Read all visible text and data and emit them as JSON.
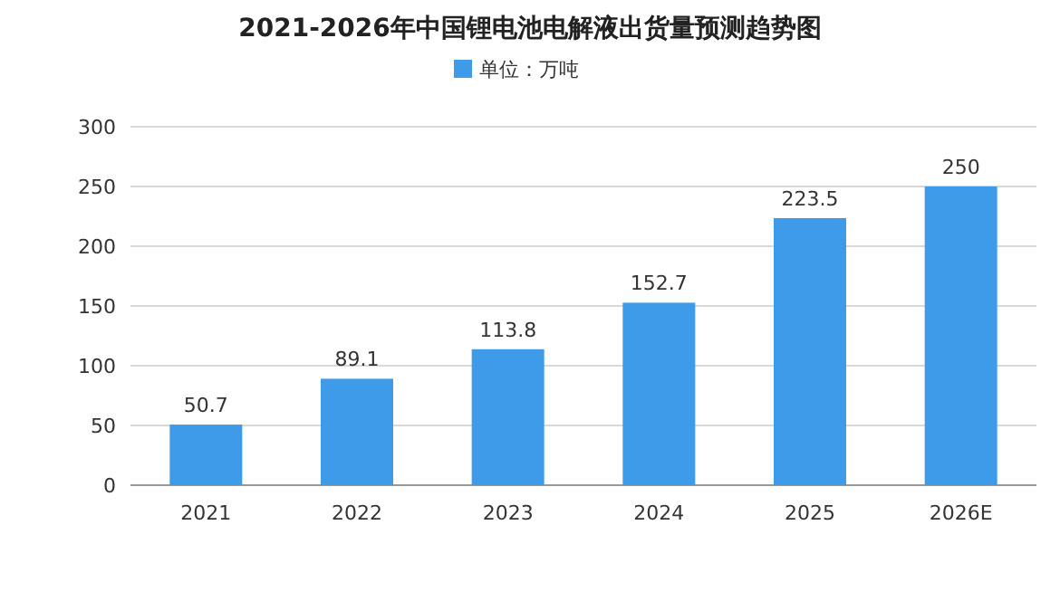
{
  "chart_data": {
    "type": "bar",
    "title": "2021-2026年中国锂电池电解液出货量预测趋势图",
    "categories": [
      "2021",
      "2022",
      "2023",
      "2024",
      "2025",
      "2026E"
    ],
    "series": [
      {
        "name": "单位：万吨",
        "color": "#3d9be9",
        "values": [
          50.7,
          89.1,
          113.8,
          152.7,
          223.5,
          250
        ]
      }
    ],
    "ylim": [
      0,
      300
    ],
    "yticks": [
      0,
      50,
      100,
      150,
      200,
      250,
      300
    ],
    "grid": "y",
    "legend": "top",
    "data_labels": true
  }
}
